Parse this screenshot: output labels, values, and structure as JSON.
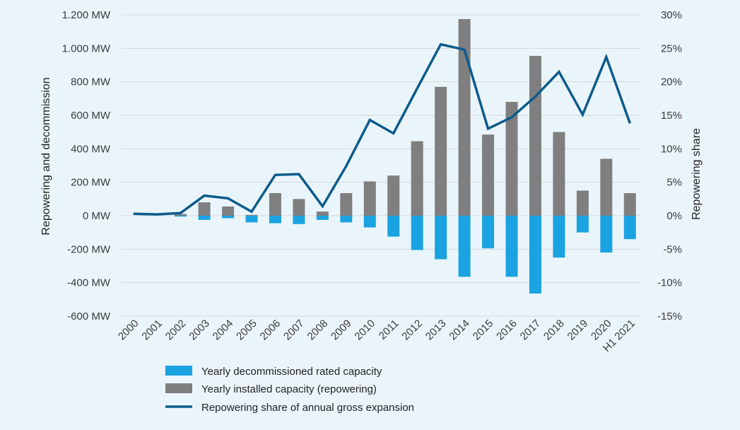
{
  "chart_data": {
    "type": "bar",
    "categories": [
      "2000",
      "2001",
      "2002",
      "2003",
      "2004",
      "2005",
      "2006",
      "2007",
      "2008",
      "2009",
      "2010",
      "2011",
      "2012",
      "2013",
      "2014",
      "2015",
      "2016",
      "2017",
      "2018",
      "2019",
      "2020",
      "H1 2021"
    ],
    "series": [
      {
        "name": "Yearly decommissioned rated capacity",
        "type": "bar",
        "axis": "left",
        "color": "#1aa3e0",
        "values": [
          0,
          0,
          -5,
          -25,
          -15,
          -40,
          -45,
          -50,
          -25,
          -40,
          -70,
          -125,
          -205,
          -260,
          -365,
          -195,
          -365,
          -465,
          -250,
          -100,
          -220,
          -140
        ]
      },
      {
        "name": "Yearly installed capacity (repowering)",
        "type": "bar",
        "axis": "left",
        "color": "#7f7f7f",
        "values": [
          0,
          0,
          10,
          80,
          55,
          5,
          135,
          100,
          25,
          135,
          205,
          240,
          445,
          770,
          1175,
          485,
          680,
          955,
          500,
          150,
          340,
          135
        ]
      },
      {
        "name": "Repowering share of annual gross expansion",
        "type": "line",
        "axis": "right",
        "color": "#0c5c8c",
        "values": [
          0.3,
          0.2,
          0.4,
          3.0,
          2.6,
          0.6,
          6.1,
          6.2,
          1.4,
          7.4,
          14.3,
          12.3,
          19.0,
          25.6,
          24.8,
          13.0,
          14.7,
          17.8,
          21.5,
          15.1,
          23.7,
          13.8
        ]
      }
    ],
    "y_left": {
      "label": "Repowering and decommission",
      "ylim": [
        -600,
        1200
      ],
      "ticks": [
        -600,
        -400,
        -200,
        0,
        200,
        400,
        600,
        800,
        1000,
        1200
      ],
      "tick_labels": [
        "-600 MW",
        "-400 MW",
        "-200 MW",
        "0 MW",
        "200 MW",
        "400 MW",
        "600 MW",
        "800 MW",
        "1.000 MW",
        "1.200 MW"
      ]
    },
    "y_right": {
      "label": "Repowering share",
      "ylim": [
        -15,
        30
      ],
      "ticks": [
        -15,
        -10,
        -5,
        0,
        5,
        10,
        15,
        20,
        25,
        30
      ],
      "tick_labels": [
        "-15%",
        "-10%",
        "-5%",
        "0%",
        "5%",
        "10%",
        "15%",
        "20%",
        "25%",
        "30%"
      ]
    },
    "grid": true,
    "legend_position": "bottom-center",
    "background": "#eaf5fb",
    "grid_color": "#d6d6d6"
  }
}
